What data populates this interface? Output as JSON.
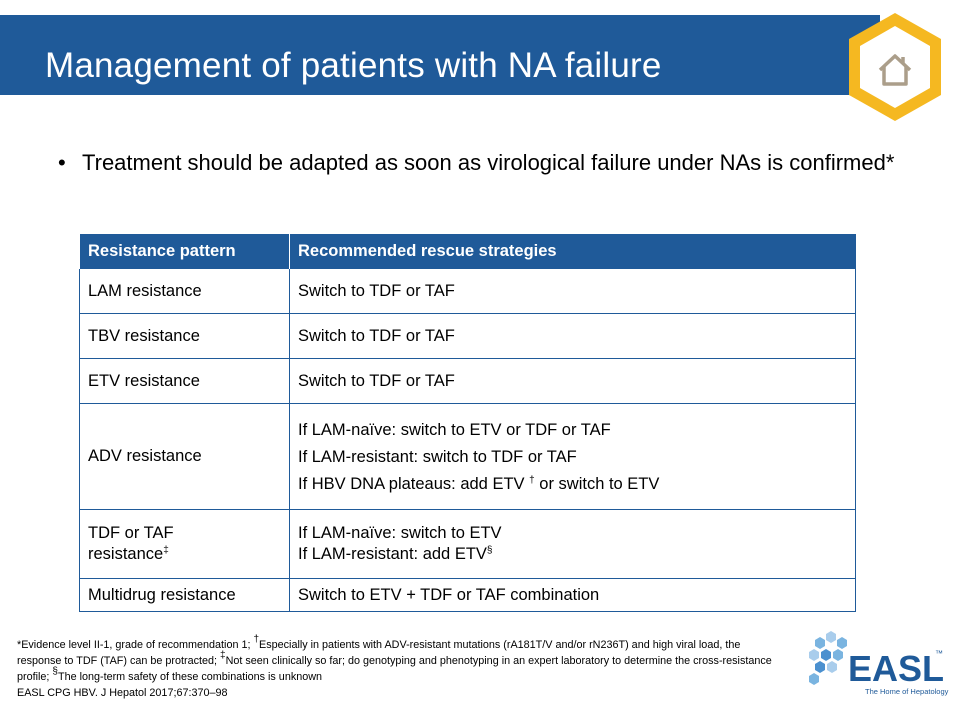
{
  "title": "Management of patients with NA failure",
  "bullet": {
    "symbol": "•",
    "text": "Treatment should be adapted as soon as virological failure under NAs is confirmed*"
  },
  "table": {
    "headers": [
      "Resistance pattern",
      "Recommended rescue strategies"
    ],
    "rows": {
      "lam": {
        "pattern": "LAM resistance",
        "strategy": "Switch to TDF or TAF"
      },
      "tbv": {
        "pattern": "TBV resistance",
        "strategy": "Switch to TDF or TAF"
      },
      "etv": {
        "pattern": "ETV resistance",
        "strategy": "Switch to TDF or TAF"
      },
      "adv": {
        "pattern": "ADV resistance",
        "line1": "If LAM-naïve: switch to ETV or TDF or TAF",
        "line2": "If LAM-resistant: switch to TDF or TAF",
        "line3a": "If HBV DNA plateaus: add ETV",
        "line3sup": "†",
        "line3b": " or switch to ETV"
      },
      "tdf": {
        "pattern_a": "TDF or TAF",
        "pattern_b": "resistance",
        "pattern_sup": "‡",
        "line1": "If LAM-naïve: switch to ETV",
        "line2": "If LAM-resistant: add ETV",
        "line2_sup": "§"
      },
      "multi": {
        "pattern": "Multidrug resistance",
        "strategy": "Switch to ETV + TDF or TAF combination"
      }
    }
  },
  "footnote": {
    "part1": "*Evidence level II-1,  grade of recommendation 1; ",
    "sup1": "†",
    "part2": "Especially in patients with ADV-resistant mutations (rA181T/V  and/or rN236T) and high viral load, the response to TDF (TAF)  can be protracted; ",
    "sup2": "‡",
    "part3": "Not seen clinically so far; do genotyping and phenotyping in an expert laboratory to determine the cross-resistance profile; ",
    "sup3": "§",
    "part4": "The long-term safety of these combinations is unknown",
    "citation": "EASL CPG HBV. J Hepatol 2017;67:370–98"
  },
  "logo": {
    "name": "EASL",
    "trademark": "™",
    "tagline": "The Home of Hepatology"
  },
  "icons": {
    "home": "home-icon"
  },
  "colors": {
    "header_blue": "#1f5a99",
    "hex_gold": "#f5b821",
    "logo_light_blue": "#7ab4e0"
  }
}
